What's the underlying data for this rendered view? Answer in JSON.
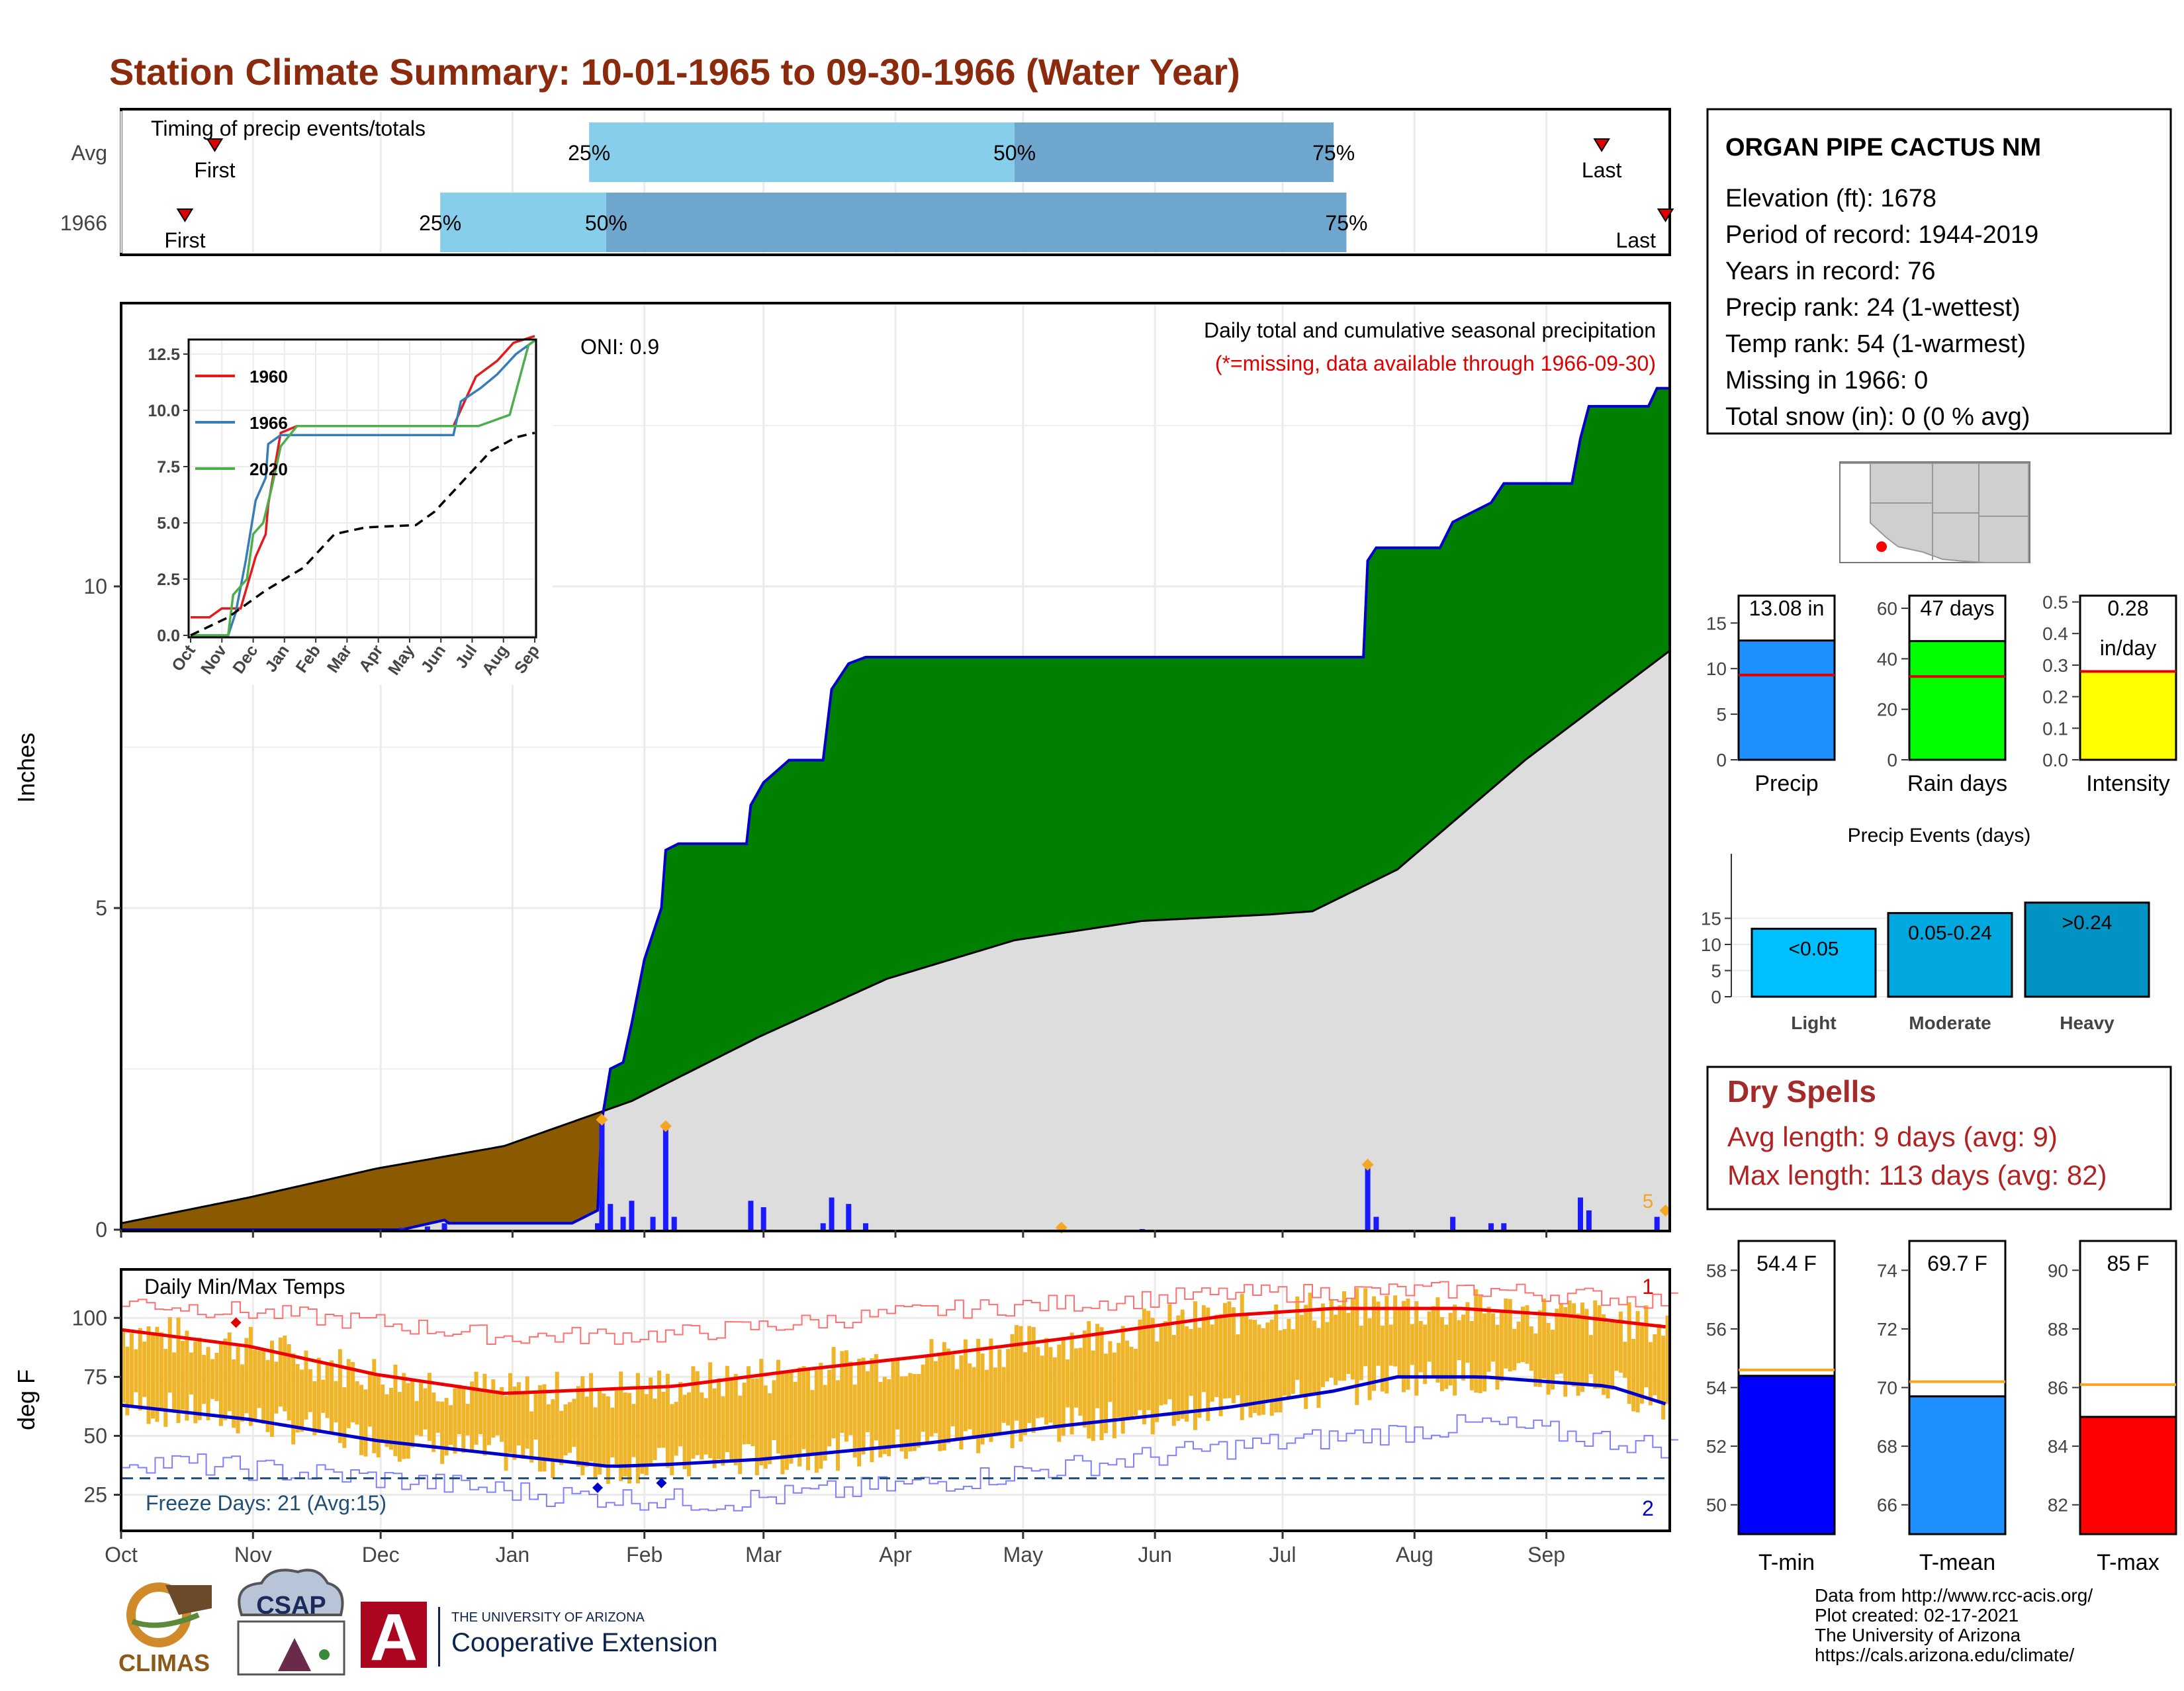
{
  "title": "Station Climate Summary: 10-01-1965 to 09-30-1966 (Water Year)",
  "timing": {
    "label": "Timing of precip events/totals",
    "rows": [
      {
        "name": "Avg",
        "first": "First",
        "last": "Last",
        "p25": "25%",
        "p50": "50%",
        "p75": "75%",
        "first_date": "1965-10-23",
        "last_date": "1966-09-14",
        "p25_date": "1966-01-19",
        "p50_date": "1966-04-29",
        "p75_date": "1966-07-13"
      },
      {
        "name": "1966",
        "first": "First",
        "last": "Last",
        "p25": "25%",
        "p50": "50%",
        "p75": "75%",
        "first_date": "1965-10-16",
        "last_date": "1966-09-29",
        "p25_date": "1965-12-15",
        "p50_date": "1966-01-23",
        "p75_date": "1966-07-16"
      }
    ]
  },
  "precip": {
    "ylabel": "Inches",
    "oni": "ONI: 0.9",
    "title": "Daily total and cumulative seasonal precipitation",
    "missing_note": "(*=missing, data available through 1966-09-30)",
    "corner_label": "5",
    "months": [
      "Oct",
      "Nov",
      "Dec",
      "Jan",
      "Feb",
      "Mar",
      "Apr",
      "May",
      "Jun",
      "Jul",
      "Aug",
      "Sep"
    ],
    "y_ticks": [
      "0",
      "5",
      "10"
    ],
    "colors": {
      "above": "#008000",
      "below": "#8b5a00",
      "normal": "#dddddd",
      "obs": "#0000cc",
      "daily": "#1a1aff",
      "marker": "#f5a623"
    }
  },
  "inset": {
    "y_ticks": [
      "0.0",
      "2.5",
      "5.0",
      "7.5",
      "10.0",
      "12.5"
    ],
    "months": [
      "Oct",
      "Nov",
      "Dec",
      "Jan",
      "Feb",
      "Mar",
      "Apr",
      "May",
      "Jun",
      "Jul",
      "Aug",
      "Sep"
    ],
    "legend": [
      {
        "name": "1960",
        "color": "#e41a1c"
      },
      {
        "name": "1966",
        "color": "#377eb8"
      },
      {
        "name": "2020",
        "color": "#4daf4a"
      }
    ]
  },
  "temps": {
    "ylabel": "deg F",
    "label": "Daily Min/Max Temps",
    "freeze": "Freeze Days: 21 (Avg:15)",
    "rec_hi_label": "1",
    "rec_lo_label": "2",
    "y_ticks": [
      "25",
      "50",
      "75",
      "100"
    ],
    "months": [
      "Oct",
      "Nov",
      "Dec",
      "Jan",
      "Feb",
      "Mar",
      "Apr",
      "May",
      "Jun",
      "Jul",
      "Aug",
      "Sep"
    ]
  },
  "station": {
    "name": "ORGAN PIPE CACTUS NM",
    "lines": [
      "Elevation (ft): 1678",
      "Period of record: 1944-2019",
      "Years in record: 76",
      "Precip rank: 24 (1-wettest)",
      "Temp rank: 54 (1-warmest)",
      "Missing in 1966: 0",
      "Total snow (in): 0 (0 % avg)"
    ]
  },
  "mini_bars": [
    {
      "label": "Precip",
      "value_text": "13.08 in",
      "color": "#1e90ff",
      "ticks": [
        "0",
        "5",
        "10",
        "15"
      ]
    },
    {
      "label": "Rain days",
      "value_text": "47 days",
      "color": "#00ff00",
      "ticks": [
        "0",
        "20",
        "40",
        "60"
      ]
    },
    {
      "label": "Intensity",
      "value_text": "0.28",
      "value_text2": "in/day",
      "color": "#ffff00",
      "ticks": [
        "0.0",
        "0.1",
        "0.2",
        "0.3",
        "0.4",
        "0.5"
      ]
    }
  ],
  "events": {
    "title": "Precip Events (days)",
    "bars": [
      {
        "label": "Light",
        "text": "<0.05",
        "value": 13,
        "color": "#00bfff"
      },
      {
        "label": "Moderate",
        "text": "0.05-0.24",
        "value": 16,
        "color": "#00a8e0"
      },
      {
        "label": "Heavy",
        "text": ">0.24",
        "value": 18,
        "color": "#0093c4"
      }
    ],
    "ticks": [
      "0",
      "5",
      "10",
      "15"
    ]
  },
  "dry": {
    "title": "Dry Spells",
    "avg": "Avg length: 9 days (avg: 9)",
    "max": "Max length: 113 days (avg: 82)"
  },
  "temp_bars": [
    {
      "label": "T-min",
      "value_text": "54.4 F",
      "color": "#0000ff",
      "ticks": [
        "50",
        "52",
        "54",
        "56",
        "58"
      ]
    },
    {
      "label": "T-mean",
      "value_text": "69.7 F",
      "color": "#1e90ff",
      "ticks": [
        "66",
        "68",
        "70",
        "72",
        "74"
      ]
    },
    {
      "label": "T-max",
      "value_text": "85 F",
      "color": "#ff0000",
      "ticks": [
        "82",
        "84",
        "86",
        "88",
        "90"
      ]
    }
  ],
  "credits": [
    "Data from http://www.rcc-acis.org/",
    "Plot created: 02-17-2021",
    "The University of Arizona",
    "https://cals.arizona.edu/climate/"
  ],
  "logos": {
    "climas": "CLIMAS",
    "csap": "CSAP",
    "ua_small": "THE UNIVERSITY OF ARIZONA",
    "ua_big": "Cooperative Extension",
    "ua_letter": "A"
  },
  "chart_data": [
    {
      "type": "bar",
      "title": "Timing of precip events/totals",
      "categories": [
        "Avg",
        "1966"
      ],
      "series": [
        {
          "name": "25%",
          "values": [
            "1966-01-19",
            "1965-12-15"
          ]
        },
        {
          "name": "50%",
          "values": [
            "1966-04-29",
            "1966-01-23"
          ]
        },
        {
          "name": "75%",
          "values": [
            "1966-07-13",
            "1966-07-16"
          ]
        }
      ],
      "first": [
        "1965-10-23",
        "1965-10-16"
      ],
      "last": [
        "1966-09-14",
        "1966-09-29"
      ]
    },
    {
      "type": "area",
      "title": "Daily total and cumulative seasonal precipitation",
      "ylabel": "Inches",
      "ylim": [
        0,
        14
      ],
      "observed_cumulative": [
        [
          0,
          0
        ],
        [
          66,
          0
        ],
        [
          76,
          0.15
        ],
        [
          77,
          0.1
        ],
        [
          93,
          0.1
        ],
        [
          106,
          0.1
        ],
        [
          112,
          0.3
        ],
        [
          113,
          1.7
        ],
        [
          115,
          2.5
        ],
        [
          118,
          2.6
        ],
        [
          120,
          3.2
        ],
        [
          123,
          4.2
        ],
        [
          127,
          5.0
        ],
        [
          128,
          5.9
        ],
        [
          131,
          6.0
        ],
        [
          147,
          6.0
        ],
        [
          148,
          6.6
        ],
        [
          151,
          6.95
        ],
        [
          157,
          7.3
        ],
        [
          165,
          7.3
        ],
        [
          167,
          8.4
        ],
        [
          171,
          8.8
        ],
        [
          175,
          8.9
        ],
        [
          220,
          8.9
        ],
        [
          292,
          8.9
        ],
        [
          293,
          10.4
        ],
        [
          295,
          10.6
        ],
        [
          310,
          10.6
        ],
        [
          313,
          11.0
        ],
        [
          322,
          11.3
        ],
        [
          325,
          11.6
        ],
        [
          341,
          11.6
        ],
        [
          343,
          12.3
        ],
        [
          345,
          12.8
        ],
        [
          359,
          12.8
        ],
        [
          361,
          13.08
        ],
        [
          364,
          13.08
        ]
      ],
      "normal_cumulative": [
        [
          0,
          0.1
        ],
        [
          30,
          0.5
        ],
        [
          60,
          0.95
        ],
        [
          90,
          1.3
        ],
        [
          120,
          2.0
        ],
        [
          150,
          3.0
        ],
        [
          180,
          3.9
        ],
        [
          210,
          4.5
        ],
        [
          240,
          4.8
        ],
        [
          270,
          4.9
        ],
        [
          280,
          4.95
        ],
        [
          300,
          5.6
        ],
        [
          330,
          7.3
        ],
        [
          364,
          9.0
        ]
      ],
      "daily_precip": [
        [
          66,
          0.03
        ],
        [
          72,
          0.05
        ],
        [
          76,
          0.1
        ],
        [
          112,
          0.1
        ],
        [
          113,
          1.7
        ],
        [
          115,
          0.4
        ],
        [
          118,
          0.2
        ],
        [
          120,
          0.45
        ],
        [
          125,
          0.2
        ],
        [
          128,
          1.6
        ],
        [
          130,
          0.2
        ],
        [
          148,
          0.45
        ],
        [
          151,
          0.35
        ],
        [
          165,
          0.1
        ],
        [
          167,
          0.5
        ],
        [
          171,
          0.4
        ],
        [
          175,
          0.1
        ],
        [
          240,
          0.01
        ],
        [
          293,
          1.0
        ],
        [
          295,
          0.2
        ],
        [
          313,
          0.2
        ],
        [
          322,
          0.1
        ],
        [
          325,
          0.1
        ],
        [
          343,
          0.5
        ],
        [
          345,
          0.3
        ],
        [
          361,
          0.2
        ]
      ]
    },
    {
      "type": "line",
      "title": "",
      "series": [
        {
          "name": "1960",
          "values": [
            [
              0,
              0.8
            ],
            [
              15,
              0.8
            ],
            [
              25,
              1.2
            ],
            [
              40,
              1.2
            ],
            [
              52,
              3.5
            ],
            [
              60,
              4.5
            ],
            [
              62,
              5.8
            ],
            [
              72,
              9.0
            ],
            [
              85,
              9.3
            ],
            [
              210,
              9.3
            ],
            [
              228,
              11.5
            ],
            [
              245,
              12.2
            ],
            [
              258,
              13.0
            ],
            [
              275,
              13.3
            ]
          ]
        },
        {
          "name": "1966",
          "values": [
            [
              0,
              0
            ],
            [
              30,
              0
            ],
            [
              36,
              1.0
            ],
            [
              44,
              3.3
            ],
            [
              52,
              6.0
            ],
            [
              60,
              7.0
            ],
            [
              62,
              8.5
            ],
            [
              72,
              8.9
            ],
            [
              210,
              8.9
            ],
            [
              216,
              10.4
            ],
            [
              232,
              11.0
            ],
            [
              245,
              11.6
            ],
            [
              260,
              12.5
            ],
            [
              275,
              13.1
            ]
          ]
        },
        {
          "name": "2020",
          "values": [
            [
              0,
              0
            ],
            [
              30,
              0
            ],
            [
              34,
              1.8
            ],
            [
              45,
              2.5
            ],
            [
              50,
              4.5
            ],
            [
              58,
              5.0
            ],
            [
              65,
              6.6
            ],
            [
              72,
              8.4
            ],
            [
              85,
              9.3
            ],
            [
              200,
              9.3
            ],
            [
              230,
              9.3
            ],
            [
              255,
              9.8
            ],
            [
              270,
              12.9
            ],
            [
              275,
              13.1
            ]
          ]
        },
        {
          "name": "",
          "values": [
            [
              0,
              0
            ],
            [
              30,
              0.8
            ],
            [
              60,
              2.0
            ],
            [
              90,
              3.0
            ],
            [
              115,
              4.5
            ],
            [
              140,
              4.8
            ],
            [
              180,
              4.9
            ],
            [
              195,
              5.5
            ],
            [
              225,
              7.3
            ],
            [
              240,
              8.2
            ],
            [
              260,
              8.8
            ],
            [
              275,
              9.0
            ]
          ]
        }
      ]
    },
    {
      "type": "line",
      "title": "Daily Min/Max Temps",
      "ylabel": "deg F",
      "ylim": [
        10,
        120
      ],
      "series": [
        {
          "name": "Avg max",
          "values": [
            [
              0,
              95
            ],
            [
              30,
              88
            ],
            [
              60,
              76
            ],
            [
              90,
              68
            ],
            [
              130,
              71
            ],
            [
              160,
              78
            ],
            [
              190,
              84
            ],
            [
              225,
              92
            ],
            [
              260,
              101
            ],
            [
              285,
              104
            ],
            [
              315,
              104
            ],
            [
              340,
              101
            ],
            [
              364,
              96
            ]
          ]
        },
        {
          "name": "Avg min",
          "values": [
            [
              0,
              63
            ],
            [
              30,
              57
            ],
            [
              60,
              48
            ],
            [
              90,
              42
            ],
            [
              115,
              37
            ],
            [
              130,
              38
            ],
            [
              150,
              40
            ],
            [
              190,
              47
            ],
            [
              220,
              54
            ],
            [
              260,
              62
            ],
            [
              285,
              69
            ],
            [
              300,
              75
            ],
            [
              320,
              75
            ],
            [
              350,
              71
            ],
            [
              364,
              63
            ]
          ]
        },
        {
          "name": "Record high",
          "values": [
            [
              0,
              107
            ],
            [
              60,
              98
            ],
            [
              90,
              92
            ],
            [
              130,
              93
            ],
            [
              190,
              103
            ],
            [
              260,
              110
            ],
            [
              320,
              112
            ],
            [
              364,
              107
            ]
          ]
        },
        {
          "name": "Record low",
          "values": [
            [
              0,
              40
            ],
            [
              60,
              32
            ],
            [
              100,
              25
            ],
            [
              140,
              22
            ],
            [
              190,
              30
            ],
            [
              260,
              45
            ],
            [
              320,
              55
            ],
            [
              364,
              45
            ]
          ]
        }
      ],
      "freeze_line": 32
    }
  ]
}
